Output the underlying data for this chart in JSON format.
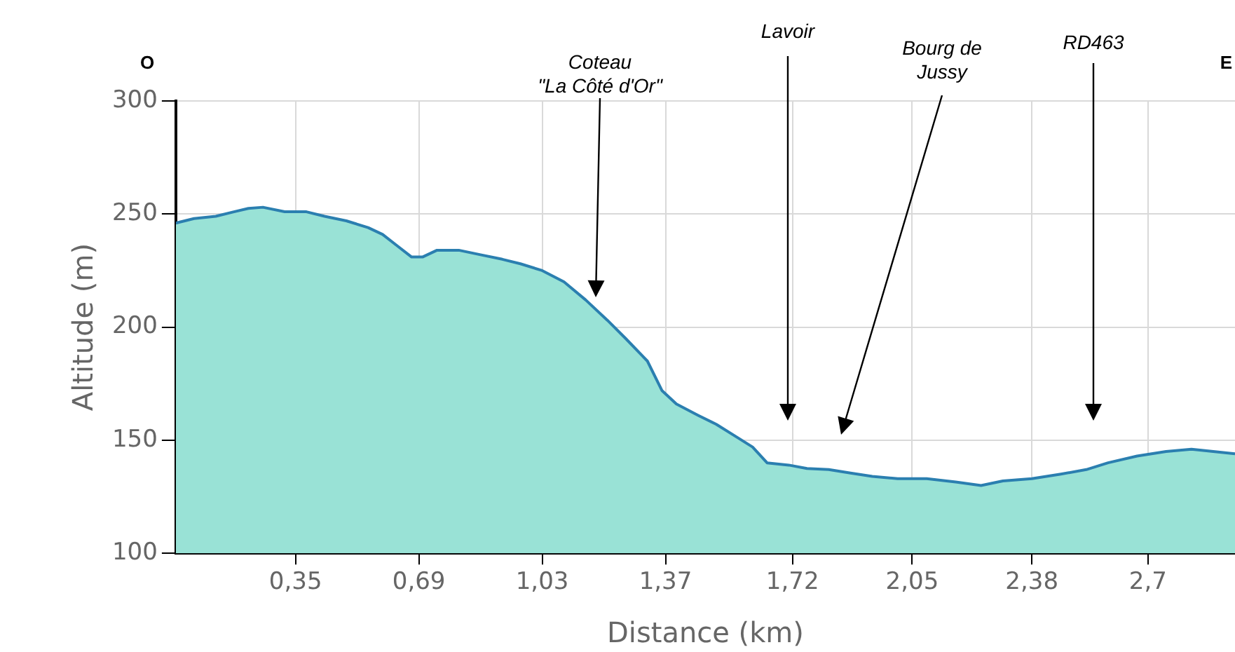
{
  "chart_data": {
    "type": "area",
    "xlabel": "Distance (km)",
    "ylabel": "Altitude (m)",
    "x": [
      0.02,
      0.07,
      0.13,
      0.18,
      0.22,
      0.26,
      0.32,
      0.38,
      0.43,
      0.49,
      0.55,
      0.59,
      0.63,
      0.67,
      0.7,
      0.74,
      0.8,
      0.86,
      0.92,
      0.97,
      1.03,
      1.09,
      1.15,
      1.21,
      1.26,
      1.32,
      1.36,
      1.4,
      1.46,
      1.51,
      1.57,
      1.61,
      1.65,
      1.71,
      1.76,
      1.82,
      1.88,
      1.94,
      2.01,
      2.09,
      2.17,
      2.24,
      2.3,
      2.38,
      2.46,
      2.53,
      2.59,
      2.67,
      2.75,
      2.82,
      2.88,
      2.94
    ],
    "series": [
      {
        "color": "#99e2d6",
        "values": [
          246,
          248,
          249,
          251,
          252.5,
          253,
          251,
          251,
          249,
          247,
          244,
          241,
          236,
          231,
          231,
          234,
          234,
          232,
          230,
          228,
          225,
          220,
          212,
          203,
          195,
          185,
          172,
          166,
          161,
          157,
          151,
          147,
          140,
          139,
          137.5,
          137,
          135.5,
          134,
          133,
          133,
          131.5,
          130,
          132,
          133,
          135,
          137,
          140,
          143,
          145,
          146,
          145,
          144
        ]
      }
    ],
    "xlim": [
      0.02,
      2.94
    ],
    "xticks": [
      {
        "value": 0.35,
        "label": "0,35"
      },
      {
        "value": 0.69,
        "label": "0,69"
      },
      {
        "value": 1.03,
        "label": "1,03"
      },
      {
        "value": 1.37,
        "label": "1,37"
      },
      {
        "value": 1.72,
        "label": "1,72"
      },
      {
        "value": 2.05,
        "label": "2,05"
      },
      {
        "value": 2.38,
        "label": "2,38"
      },
      {
        "value": 2.7,
        "label": "2,7"
      }
    ],
    "ylim": [
      100,
      300
    ],
    "yticks": [
      100,
      150,
      200,
      250,
      300
    ],
    "grid": true,
    "legend": false,
    "marker": "none",
    "line_style": "solid",
    "annotations": [
      "O",
      "E",
      "Coteau\n\"La Côté d'Or\"",
      "Lavoir",
      "Bourg de\nJussy",
      "RD463"
    ]
  }
}
